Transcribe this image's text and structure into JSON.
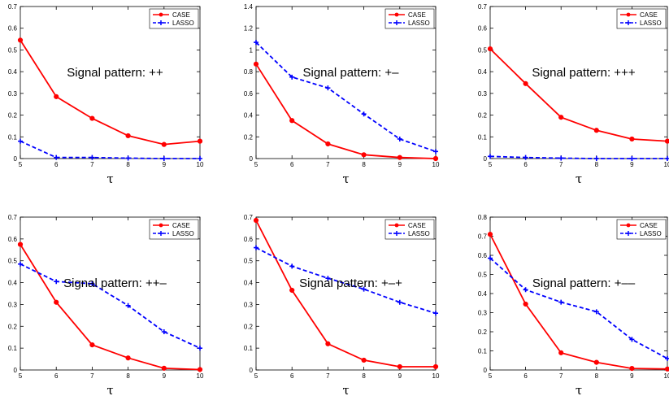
{
  "colors": {
    "case": "#ff0000",
    "lasso": "#0000ff"
  },
  "chart_data": [
    {
      "type": "line",
      "annotation": "Signal pattern: ++",
      "xlabel": "τ",
      "x": [
        5,
        6,
        7,
        8,
        9,
        10
      ],
      "xlim": [
        5,
        10
      ],
      "ylim": [
        0,
        0.7
      ],
      "yticks": [
        0,
        0.1,
        0.2,
        0.3,
        0.4,
        0.5,
        0.6,
        0.7
      ],
      "series": [
        {
          "name": "CASE",
          "values": [
            0.545,
            0.285,
            0.185,
            0.105,
            0.065,
            0.08
          ]
        },
        {
          "name": "LASSO",
          "values": [
            0.08,
            0.005,
            0.005,
            0.002,
            0.0,
            0.0
          ]
        }
      ]
    },
    {
      "type": "line",
      "annotation": "Signal pattern: +–",
      "xlabel": "τ",
      "x": [
        5,
        6,
        7,
        8,
        9,
        10
      ],
      "xlim": [
        5,
        10
      ],
      "ylim": [
        0,
        1.4
      ],
      "yticks": [
        0,
        0.2,
        0.4,
        0.6,
        0.8,
        1,
        1.2,
        1.4
      ],
      "series": [
        {
          "name": "CASE",
          "values": [
            0.87,
            0.35,
            0.135,
            0.035,
            0.01,
            0.0
          ]
        },
        {
          "name": "LASSO",
          "values": [
            1.07,
            0.75,
            0.65,
            0.41,
            0.18,
            0.065
          ]
        }
      ]
    },
    {
      "type": "line",
      "annotation": "Signal pattern: +++",
      "xlabel": "τ",
      "x": [
        5,
        6,
        7,
        8,
        9,
        10
      ],
      "xlim": [
        5,
        10
      ],
      "ylim": [
        0,
        0.7
      ],
      "yticks": [
        0,
        0.1,
        0.2,
        0.3,
        0.4,
        0.5,
        0.6,
        0.7
      ],
      "series": [
        {
          "name": "CASE",
          "values": [
            0.505,
            0.345,
            0.19,
            0.13,
            0.09,
            0.08
          ]
        },
        {
          "name": "LASSO",
          "values": [
            0.01,
            0.005,
            0.002,
            0.0,
            0.0,
            0.0
          ]
        }
      ]
    },
    {
      "type": "line",
      "annotation": "Signal pattern: ++–",
      "xlabel": "τ",
      "x": [
        5,
        6,
        7,
        8,
        9,
        10
      ],
      "xlim": [
        5,
        10
      ],
      "ylim": [
        0,
        0.7
      ],
      "yticks": [
        0,
        0.1,
        0.2,
        0.3,
        0.4,
        0.5,
        0.6,
        0.7
      ],
      "series": [
        {
          "name": "CASE",
          "values": [
            0.575,
            0.31,
            0.115,
            0.055,
            0.008,
            0.002
          ]
        },
        {
          "name": "LASSO",
          "values": [
            0.485,
            0.405,
            0.395,
            0.295,
            0.175,
            0.1
          ]
        }
      ]
    },
    {
      "type": "line",
      "annotation": "Signal pattern: +–+",
      "xlabel": "τ",
      "x": [
        5,
        6,
        7,
        8,
        9,
        10
      ],
      "xlim": [
        5,
        10
      ],
      "ylim": [
        0,
        0.7
      ],
      "yticks": [
        0,
        0.1,
        0.2,
        0.3,
        0.4,
        0.5,
        0.6,
        0.7
      ],
      "series": [
        {
          "name": "CASE",
          "values": [
            0.685,
            0.365,
            0.12,
            0.045,
            0.015,
            0.015
          ]
        },
        {
          "name": "LASSO",
          "values": [
            0.56,
            0.475,
            0.42,
            0.37,
            0.31,
            0.26
          ]
        }
      ]
    },
    {
      "type": "line",
      "annotation": "Signal pattern: +––",
      "xlabel": "τ",
      "x": [
        5,
        6,
        7,
        8,
        9,
        10
      ],
      "xlim": [
        5,
        10
      ],
      "ylim": [
        0,
        0.8
      ],
      "yticks": [
        0,
        0.1,
        0.2,
        0.3,
        0.4,
        0.5,
        0.6,
        0.7,
        0.8
      ],
      "series": [
        {
          "name": "CASE",
          "values": [
            0.71,
            0.345,
            0.09,
            0.04,
            0.008,
            0.005
          ]
        },
        {
          "name": "LASSO",
          "values": [
            0.585,
            0.42,
            0.355,
            0.305,
            0.16,
            0.06
          ]
        }
      ]
    }
  ]
}
